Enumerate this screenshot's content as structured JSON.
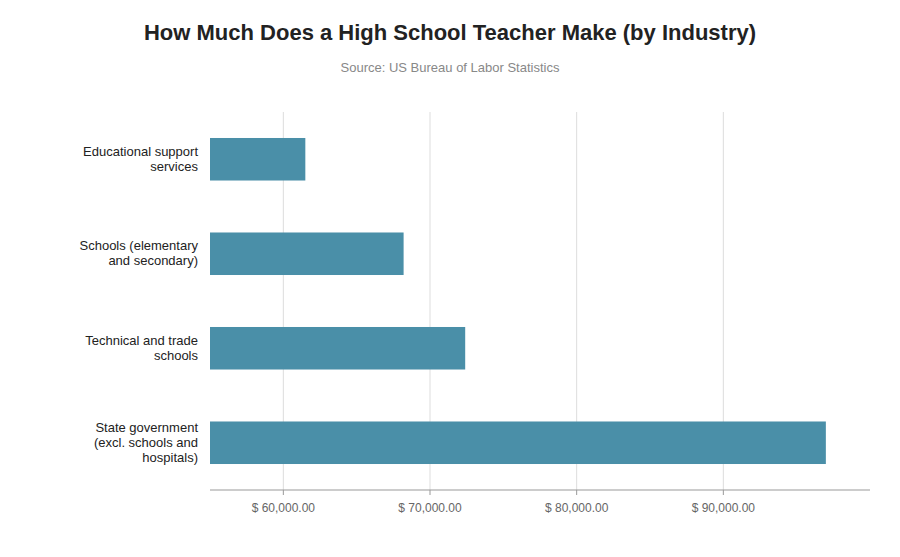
{
  "chart_data": {
    "type": "bar",
    "orientation": "horizontal",
    "title": "How Much Does a High School Teacher Make (by Industry)",
    "subtitle": "Source: US Bureau of Labor Statistics",
    "categories": [
      "State government\n(excl. schools and\nhospitals)",
      "Technical and trade\nschools",
      "Schools (elementary\nand secondary)",
      "Educational support\nservices"
    ],
    "values": [
      96990,
      72400,
      68200,
      61500
    ],
    "color": "#4a8fa8",
    "xlim": [
      55000,
      100000
    ],
    "xticks": [
      {
        "value": 60000,
        "label": "$ 60,000.00"
      },
      {
        "value": 70000,
        "label": "$ 70,000.00"
      },
      {
        "value": 80000,
        "label": "$ 80,000.00"
      },
      {
        "value": 90000,
        "label": "$ 90,000.00"
      }
    ],
    "grid": true
  }
}
